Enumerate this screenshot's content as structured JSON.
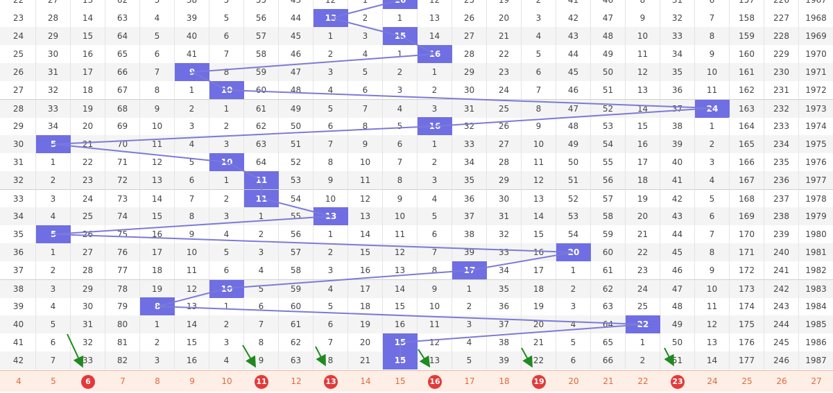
{
  "colors": {
    "highlight": "#6f6ee3",
    "line": "#7b7ad8",
    "circle": "#e23a3a",
    "arrow": "#1f8a1f",
    "footer_text": "#e06a3d"
  },
  "top_partial": [
    "22",
    "27",
    "13",
    "62",
    "3",
    "38",
    "5",
    "55",
    "43",
    "12",
    "1",
    "16",
    "12",
    "25",
    "19",
    "2",
    "41",
    "46",
    "8",
    "31",
    "6",
    "157",
    "226",
    "1967"
  ],
  "rows": [
    {
      "cells": [
        "23",
        "28",
        "14",
        "63",
        "4",
        "39",
        "5",
        "56",
        "44",
        "13",
        "2",
        "1",
        "13",
        "26",
        "20",
        "3",
        "42",
        "47",
        "9",
        "32",
        "7",
        "158",
        "227",
        "1968"
      ],
      "hl": 9
    },
    {
      "cells": [
        "24",
        "29",
        "15",
        "64",
        "5",
        "40",
        "6",
        "57",
        "45",
        "1",
        "3",
        "15",
        "14",
        "27",
        "21",
        "4",
        "43",
        "48",
        "10",
        "33",
        "8",
        "159",
        "228",
        "1969"
      ],
      "hl": 11
    },
    {
      "cells": [
        "25",
        "30",
        "16",
        "65",
        "6",
        "41",
        "7",
        "58",
        "46",
        "2",
        "4",
        "1",
        "16",
        "28",
        "22",
        "5",
        "44",
        "49",
        "11",
        "34",
        "9",
        "160",
        "229",
        "1970"
      ],
      "hl": 12
    },
    {
      "cells": [
        "26",
        "31",
        "17",
        "66",
        "7",
        "9",
        "8",
        "59",
        "47",
        "3",
        "5",
        "2",
        "1",
        "29",
        "23",
        "6",
        "45",
        "50",
        "12",
        "35",
        "10",
        "161",
        "230",
        "1971"
      ],
      "hl": 5
    },
    {
      "cells": [
        "27",
        "32",
        "18",
        "67",
        "8",
        "1",
        "10",
        "60",
        "48",
        "4",
        "6",
        "3",
        "2",
        "30",
        "24",
        "7",
        "46",
        "51",
        "13",
        "36",
        "11",
        "162",
        "231",
        "1972"
      ],
      "hl": 6
    },
    {
      "cells": [
        "28",
        "33",
        "19",
        "68",
        "9",
        "2",
        "1",
        "61",
        "49",
        "5",
        "7",
        "4",
        "3",
        "31",
        "25",
        "8",
        "47",
        "52",
        "14",
        "37",
        "24",
        "163",
        "232",
        "1973"
      ],
      "hl": 20
    },
    {
      "cells": [
        "29",
        "34",
        "20",
        "69",
        "10",
        "3",
        "2",
        "62",
        "50",
        "6",
        "8",
        "5",
        "16",
        "32",
        "26",
        "9",
        "48",
        "53",
        "15",
        "38",
        "1",
        "164",
        "233",
        "1974"
      ],
      "hl": 12
    },
    {
      "cells": [
        "30",
        "5",
        "21",
        "70",
        "11",
        "4",
        "3",
        "63",
        "51",
        "7",
        "9",
        "6",
        "1",
        "33",
        "27",
        "10",
        "49",
        "54",
        "16",
        "39",
        "2",
        "165",
        "234",
        "1975"
      ],
      "hl": 1
    },
    {
      "cells": [
        "31",
        "1",
        "22",
        "71",
        "12",
        "5",
        "10",
        "64",
        "52",
        "8",
        "10",
        "7",
        "2",
        "34",
        "28",
        "11",
        "50",
        "55",
        "17",
        "40",
        "3",
        "166",
        "235",
        "1976"
      ],
      "hl": 6
    },
    {
      "cells": [
        "32",
        "2",
        "23",
        "72",
        "13",
        "6",
        "1",
        "11",
        "53",
        "9",
        "11",
        "8",
        "3",
        "35",
        "29",
        "12",
        "51",
        "56",
        "18",
        "41",
        "4",
        "167",
        "236",
        "1977"
      ],
      "hl": 7
    },
    {
      "cells": [
        "33",
        "3",
        "24",
        "73",
        "14",
        "7",
        "2",
        "11",
        "54",
        "10",
        "12",
        "9",
        "4",
        "36",
        "30",
        "13",
        "52",
        "57",
        "19",
        "42",
        "5",
        "168",
        "237",
        "1978"
      ],
      "hl": 7
    },
    {
      "cells": [
        "34",
        "4",
        "25",
        "74",
        "15",
        "8",
        "3",
        "1",
        "55",
        "13",
        "13",
        "10",
        "5",
        "37",
        "31",
        "14",
        "53",
        "58",
        "20",
        "43",
        "6",
        "169",
        "238",
        "1979"
      ],
      "hl": 9
    },
    {
      "cells": [
        "35",
        "5",
        "26",
        "75",
        "16",
        "9",
        "4",
        "2",
        "56",
        "1",
        "14",
        "11",
        "6",
        "38",
        "32",
        "15",
        "54",
        "59",
        "21",
        "44",
        "7",
        "170",
        "239",
        "1980"
      ],
      "hl": 1
    },
    {
      "cells": [
        "36",
        "1",
        "27",
        "76",
        "17",
        "10",
        "5",
        "3",
        "57",
        "2",
        "15",
        "12",
        "7",
        "39",
        "33",
        "16",
        "20",
        "60",
        "22",
        "45",
        "8",
        "171",
        "240",
        "1981"
      ],
      "hl": 16
    },
    {
      "cells": [
        "37",
        "2",
        "28",
        "77",
        "18",
        "11",
        "6",
        "4",
        "58",
        "3",
        "16",
        "13",
        "8",
        "17",
        "34",
        "17",
        "1",
        "61",
        "23",
        "46",
        "9",
        "172",
        "241",
        "1982"
      ],
      "hl": 13
    },
    {
      "cells": [
        "38",
        "3",
        "29",
        "78",
        "19",
        "12",
        "10",
        "5",
        "59",
        "4",
        "17",
        "14",
        "9",
        "1",
        "35",
        "18",
        "2",
        "62",
        "24",
        "47",
        "10",
        "173",
        "242",
        "1983"
      ],
      "hl": 6
    },
    {
      "cells": [
        "39",
        "4",
        "30",
        "79",
        "8",
        "13",
        "1",
        "6",
        "60",
        "5",
        "18",
        "15",
        "10",
        "2",
        "36",
        "19",
        "3",
        "63",
        "25",
        "48",
        "11",
        "174",
        "243",
        "1984"
      ],
      "hl": 4
    },
    {
      "cells": [
        "40",
        "5",
        "31",
        "80",
        "1",
        "14",
        "2",
        "7",
        "61",
        "6",
        "19",
        "16",
        "11",
        "3",
        "37",
        "20",
        "4",
        "64",
        "22",
        "49",
        "12",
        "175",
        "244",
        "1985"
      ],
      "hl": 18
    },
    {
      "cells": [
        "41",
        "6",
        "32",
        "81",
        "2",
        "15",
        "3",
        "8",
        "62",
        "7",
        "20",
        "15",
        "12",
        "4",
        "38",
        "21",
        "5",
        "65",
        "1",
        "50",
        "13",
        "176",
        "245",
        "1986"
      ],
      "hl": 11
    },
    {
      "cells": [
        "42",
        "7",
        "33",
        "82",
        "3",
        "16",
        "4",
        "9",
        "63",
        "8",
        "21",
        "15",
        "13",
        "5",
        "39",
        "22",
        "6",
        "66",
        "2",
        "51",
        "14",
        "177",
        "246",
        "1987"
      ],
      "hl": 11
    }
  ],
  "footer": [
    "4",
    "5",
    "6",
    "7",
    "8",
    "9",
    "10",
    "11",
    "12",
    "13",
    "14",
    "15",
    "16",
    "17",
    "18",
    "19",
    "20",
    "21",
    "22",
    "23",
    "24",
    "25",
    "26",
    "27"
  ],
  "footer_circled": [
    2,
    7,
    9,
    12,
    15,
    19
  ]
}
